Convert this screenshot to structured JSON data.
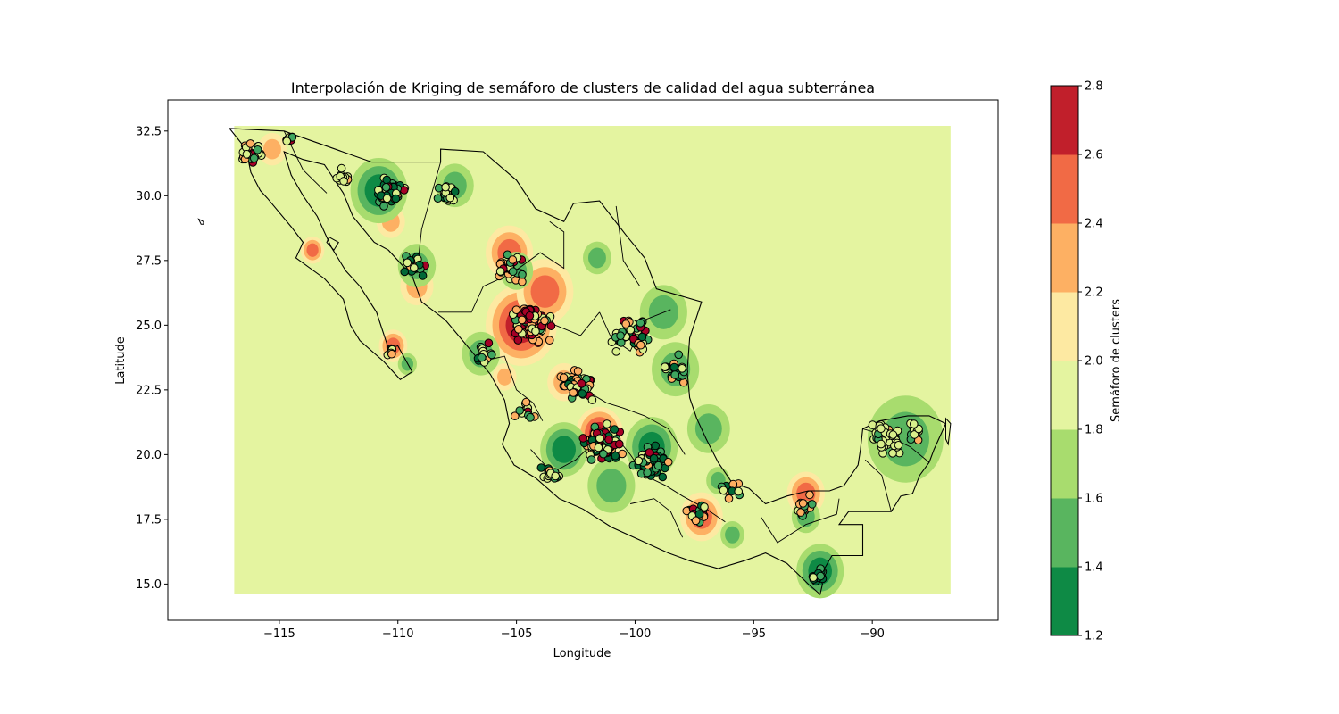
{
  "chart_data": {
    "type": "contour-map",
    "title": "Interpolación de Kriging de semáforo de clusters de calidad del agua subterránea",
    "xlabel": "Longitude",
    "ylabel": "Latitude",
    "xlim": [
      -119.7,
      -84.7
    ],
    "ylim": [
      13.6,
      33.7
    ],
    "x_ticks": [
      -115,
      -110,
      -105,
      -100,
      -95,
      -90
    ],
    "x_tick_labels": [
      "−115",
      "−110",
      "−105",
      "−100",
      "−95",
      "−90"
    ],
    "y_ticks": [
      15.0,
      17.5,
      20.0,
      22.5,
      25.0,
      27.5,
      30.0,
      32.5
    ],
    "y_tick_labels": [
      "15.0",
      "17.5",
      "20.0",
      "22.5",
      "25.0",
      "27.5",
      "30.0",
      "32.5"
    ],
    "interpolation_extent": {
      "lon": [
        -116.9,
        -86.7
      ],
      "lat": [
        14.6,
        32.7
      ]
    },
    "colorbar": {
      "label": "Semáforo de clusters",
      "levels": [
        1.2,
        1.4,
        1.6,
        1.8,
        2.0,
        2.2,
        2.4,
        2.6,
        2.8
      ],
      "tick_labels": [
        "1.2",
        "1.4",
        "1.6",
        "1.8",
        "2.0",
        "2.2",
        "2.4",
        "2.6",
        "2.8"
      ],
      "colors": [
        "#0e8a45",
        "#59b55f",
        "#a8dc6e",
        "#e4f4a0",
        "#fde9a2",
        "#fdb063",
        "#f16a45",
        "#c11f2b"
      ]
    },
    "background_level_color": "#e4f4a0",
    "point_edge_color": "#000000",
    "hotspots": [
      {
        "lon": -104.8,
        "lat": 25.0,
        "value": 2.7,
        "r": 1.5
      },
      {
        "lon": -105.3,
        "lat": 27.8,
        "value": 2.5,
        "r": 1.0
      },
      {
        "lon": -103.8,
        "lat": 26.3,
        "value": 2.4,
        "r": 1.2
      },
      {
        "lon": -101.5,
        "lat": 20.8,
        "value": 2.7,
        "r": 1.0
      },
      {
        "lon": -97.2,
        "lat": 17.6,
        "value": 2.5,
        "r": 0.9
      },
      {
        "lon": -92.8,
        "lat": 18.5,
        "value": 2.5,
        "r": 0.8
      },
      {
        "lon": -110.2,
        "lat": 24.2,
        "value": 2.4,
        "r": 0.6
      },
      {
        "lon": -115.3,
        "lat": 31.8,
        "value": 2.3,
        "r": 0.6
      },
      {
        "lon": -113.6,
        "lat": 27.9,
        "value": 2.4,
        "r": 0.5
      },
      {
        "lon": -109.2,
        "lat": 26.5,
        "value": 2.3,
        "r": 0.7
      },
      {
        "lon": -110.3,
        "lat": 29.0,
        "value": 2.3,
        "r": 0.6
      },
      {
        "lon": -103.0,
        "lat": 22.8,
        "value": 2.3,
        "r": 0.7
      },
      {
        "lon": -105.5,
        "lat": 23.0,
        "value": 2.3,
        "r": 0.5
      },
      {
        "lon": -96.9,
        "lat": 21.0,
        "value": 1.5,
        "r": 0.9
      },
      {
        "lon": -110.8,
        "lat": 30.2,
        "value": 1.4,
        "r": 1.2
      },
      {
        "lon": -109.2,
        "lat": 27.3,
        "value": 1.5,
        "r": 0.8
      },
      {
        "lon": -105.0,
        "lat": 27.1,
        "value": 1.6,
        "r": 0.7
      },
      {
        "lon": -103.0,
        "lat": 20.2,
        "value": 1.4,
        "r": 1.0
      },
      {
        "lon": -99.3,
        "lat": 20.3,
        "value": 1.4,
        "r": 1.1
      },
      {
        "lon": -101.0,
        "lat": 18.8,
        "value": 1.5,
        "r": 1.0
      },
      {
        "lon": -98.3,
        "lat": 23.3,
        "value": 1.5,
        "r": 1.0
      },
      {
        "lon": -98.8,
        "lat": 25.5,
        "value": 1.6,
        "r": 1.0
      },
      {
        "lon": -92.2,
        "lat": 15.5,
        "value": 1.4,
        "r": 1.0
      },
      {
        "lon": -92.8,
        "lat": 17.6,
        "value": 1.5,
        "r": 0.6
      },
      {
        "lon": -88.6,
        "lat": 20.6,
        "value": 1.6,
        "r": 1.6
      },
      {
        "lon": -106.5,
        "lat": 23.9,
        "value": 1.6,
        "r": 0.8
      },
      {
        "lon": -101.6,
        "lat": 27.6,
        "value": 1.6,
        "r": 0.6
      },
      {
        "lon": -107.6,
        "lat": 30.4,
        "value": 1.6,
        "r": 0.8
      },
      {
        "lon": -96.5,
        "lat": 19.0,
        "value": 1.6,
        "r": 0.5
      },
      {
        "lon": -95.9,
        "lat": 16.9,
        "value": 1.6,
        "r": 0.5
      },
      {
        "lon": -109.6,
        "lat": 23.5,
        "value": 1.6,
        "r": 0.4
      }
    ],
    "coastline": [
      [
        -117.1,
        32.6
      ],
      [
        -116.4,
        31.8
      ],
      [
        -116.2,
        30.9
      ],
      [
        -115.8,
        30.2
      ],
      [
        -115.5,
        29.9
      ],
      [
        -114.5,
        28.8
      ],
      [
        -114.0,
        28.2
      ],
      [
        -114.3,
        27.6
      ],
      [
        -113.1,
        26.8
      ],
      [
        -112.3,
        26.0
      ],
      [
        -112.0,
        25.0
      ],
      [
        -111.6,
        24.4
      ],
      [
        -110.6,
        23.6
      ],
      [
        -109.9,
        22.9
      ],
      [
        -109.4,
        23.2
      ],
      [
        -110.0,
        24.2
      ],
      [
        -110.4,
        24.1
      ],
      [
        -110.9,
        25.5
      ],
      [
        -111.6,
        26.5
      ],
      [
        -112.2,
        27.1
      ],
      [
        -112.8,
        28.0
      ],
      [
        -113.4,
        29.2
      ],
      [
        -114.0,
        30.0
      ],
      [
        -114.5,
        30.8
      ],
      [
        -114.8,
        31.7
      ],
      [
        -114.0,
        31.4
      ],
      [
        -113.1,
        31.2
      ],
      [
        -112.3,
        30.1
      ],
      [
        -111.9,
        29.2
      ],
      [
        -111.0,
        28.2
      ],
      [
        -110.4,
        27.9
      ],
      [
        -109.4,
        26.9
      ],
      [
        -109.0,
        25.9
      ],
      [
        -108.0,
        25.2
      ],
      [
        -106.9,
        24.0
      ],
      [
        -106.1,
        23.1
      ],
      [
        -105.5,
        22.1
      ],
      [
        -105.3,
        21.2
      ],
      [
        -105.6,
        20.4
      ],
      [
        -105.1,
        19.6
      ],
      [
        -104.2,
        19.1
      ],
      [
        -103.2,
        18.3
      ],
      [
        -102.2,
        17.9
      ],
      [
        -101.0,
        17.2
      ],
      [
        -99.8,
        16.7
      ],
      [
        -98.6,
        16.2
      ],
      [
        -97.7,
        15.9
      ],
      [
        -96.5,
        15.6
      ],
      [
        -95.4,
        15.9
      ],
      [
        -94.5,
        16.2
      ],
      [
        -93.6,
        15.8
      ],
      [
        -92.7,
        15.0
      ],
      [
        -92.2,
        14.6
      ],
      [
        -92.1,
        15.0
      ],
      [
        -92.2,
        15.3
      ],
      [
        -91.7,
        16.1
      ],
      [
        -90.4,
        16.1
      ],
      [
        -90.4,
        17.3
      ],
      [
        -91.4,
        17.3
      ],
      [
        -91.0,
        17.8
      ],
      [
        -89.2,
        17.8
      ],
      [
        -88.8,
        18.4
      ],
      [
        -88.3,
        18.5
      ],
      [
        -88.0,
        19.2
      ],
      [
        -87.6,
        19.7
      ],
      [
        -87.4,
        20.2
      ],
      [
        -86.9,
        21.2
      ],
      [
        -87.6,
        21.5
      ],
      [
        -88.5,
        21.5
      ],
      [
        -89.7,
        21.3
      ],
      [
        -90.4,
        21.0
      ],
      [
        -90.5,
        20.2
      ],
      [
        -90.6,
        19.6
      ],
      [
        -91.2,
        18.8
      ],
      [
        -91.8,
        18.6
      ],
      [
        -92.7,
        18.6
      ],
      [
        -93.6,
        18.4
      ],
      [
        -94.5,
        18.1
      ],
      [
        -95.2,
        18.7
      ],
      [
        -95.9,
        18.9
      ],
      [
        -96.5,
        19.7
      ],
      [
        -97.0,
        20.6
      ],
      [
        -97.4,
        21.4
      ],
      [
        -97.7,
        22.2
      ],
      [
        -97.8,
        23.2
      ],
      [
        -97.7,
        24.5
      ],
      [
        -97.2,
        25.9
      ],
      [
        -99.1,
        26.4
      ],
      [
        -99.6,
        27.6
      ],
      [
        -100.4,
        28.5
      ],
      [
        -101.5,
        29.8
      ],
      [
        -102.6,
        29.7
      ],
      [
        -103.0,
        29.0
      ],
      [
        -104.2,
        29.5
      ],
      [
        -105.0,
        30.6
      ],
      [
        -106.4,
        31.7
      ],
      [
        -108.2,
        31.8
      ],
      [
        -108.2,
        31.3
      ],
      [
        -111.1,
        31.3
      ],
      [
        -114.8,
        32.5
      ],
      [
        -117.1,
        32.6
      ]
    ],
    "state_borders": [
      [
        [
          -114.8,
          32.5
        ],
        [
          -114.0,
          31.0
        ],
        [
          -113.0,
          30.1
        ]
      ],
      [
        [
          -108.2,
          31.3
        ],
        [
          -108.6,
          30.0
        ],
        [
          -109.0,
          28.7
        ],
        [
          -109.2,
          27.0
        ]
      ],
      [
        [
          -108.3,
          25.5
        ],
        [
          -106.9,
          25.5
        ],
        [
          -106.4,
          26.5
        ],
        [
          -105.2,
          27.0
        ],
        [
          -104.0,
          27.8
        ],
        [
          -103.0,
          27.2
        ],
        [
          -103.0,
          28.6
        ],
        [
          -103.6,
          29.0
        ]
      ],
      [
        [
          -106.5,
          23.6
        ],
        [
          -105.5,
          23.8
        ],
        [
          -105.0,
          22.5
        ],
        [
          -104.3,
          22.0
        ],
        [
          -103.9,
          21.3
        ]
      ],
      [
        [
          -100.8,
          29.6
        ],
        [
          -100.5,
          27.5
        ],
        [
          -99.8,
          26.5
        ]
      ],
      [
        [
          -101.5,
          25.5
        ],
        [
          -101.0,
          24.5
        ],
        [
          -100.2,
          24.0
        ],
        [
          -99.6,
          25.2
        ],
        [
          -98.5,
          25.6
        ]
      ],
      [
        [
          -103.9,
          25.2
        ],
        [
          -102.3,
          24.6
        ],
        [
          -101.5,
          25.5
        ]
      ],
      [
        [
          -102.3,
          22.6
        ],
        [
          -101.2,
          22.0
        ],
        [
          -100.5,
          21.8
        ],
        [
          -99.6,
          21.5
        ],
        [
          -98.6,
          21.0
        ],
        [
          -97.9,
          20.0
        ]
      ],
      [
        [
          -104.4,
          20.2
        ],
        [
          -103.5,
          19.3
        ],
        [
          -102.5,
          19.8
        ],
        [
          -101.7,
          20.5
        ],
        [
          -100.9,
          20.8
        ],
        [
          -100.2,
          20.0
        ],
        [
          -99.6,
          19.2
        ],
        [
          -98.7,
          18.8
        ],
        [
          -98.0,
          18.4
        ],
        [
          -97.0,
          17.9
        ],
        [
          -96.2,
          17.4
        ]
      ],
      [
        [
          -100.2,
          18.1
        ],
        [
          -99.2,
          18.3
        ],
        [
          -98.5,
          17.8
        ],
        [
          -98.0,
          16.8
        ]
      ],
      [
        [
          -94.7,
          17.6
        ],
        [
          -94.0,
          16.6
        ],
        [
          -92.8,
          17.3
        ],
        [
          -91.5,
          17.7
        ],
        [
          -91.4,
          18.3
        ]
      ],
      [
        [
          -90.3,
          19.8
        ],
        [
          -89.6,
          19.2
        ],
        [
          -89.2,
          17.8
        ]
      ],
      [
        [
          -90.4,
          21.0
        ],
        [
          -89.3,
          20.7
        ],
        [
          -88.4,
          20.3
        ],
        [
          -87.6,
          19.7
        ]
      ]
    ],
    "islands": [
      [
        [
          -118.4,
          29.1
        ],
        [
          -118.2,
          29.0
        ],
        [
          -118.2,
          28.9
        ],
        [
          -118.3,
          28.9
        ]
      ],
      [
        [
          -112.9,
          28.4
        ],
        [
          -112.5,
          28.2
        ],
        [
          -112.7,
          27.9
        ],
        [
          -113.0,
          28.2
        ]
      ],
      [
        [
          -86.9,
          21.4
        ],
        [
          -86.7,
          21.2
        ],
        [
          -86.8,
          20.4
        ],
        [
          -86.9,
          20.6
        ]
      ]
    ],
    "point_colors": {
      "1": "#006837",
      "2": "#3ea55f",
      "3": "#d9ef8b",
      "4": "#fdae61",
      "5": "#a50026"
    },
    "clusters": [
      {
        "lon": -104.3,
        "lat": 25.0,
        "spread": 1.1,
        "n": 90,
        "mix": [
          0.06,
          0.1,
          0.18,
          0.28,
          0.38
        ]
      },
      {
        "lon": -101.3,
        "lat": 20.5,
        "spread": 1.0,
        "n": 100,
        "mix": [
          0.25,
          0.2,
          0.2,
          0.15,
          0.2
        ]
      },
      {
        "lon": -99.3,
        "lat": 19.7,
        "spread": 0.9,
        "n": 70,
        "mix": [
          0.32,
          0.28,
          0.2,
          0.12,
          0.08
        ]
      },
      {
        "lon": -102.5,
        "lat": 22.8,
        "spread": 1.0,
        "n": 50,
        "mix": [
          0.15,
          0.2,
          0.25,
          0.25,
          0.15
        ]
      },
      {
        "lon": -100.3,
        "lat": 24.6,
        "spread": 1.2,
        "n": 45,
        "mix": [
          0.1,
          0.25,
          0.35,
          0.2,
          0.1
        ]
      },
      {
        "lon": -110.4,
        "lat": 30.1,
        "spread": 0.9,
        "n": 55,
        "mix": [
          0.25,
          0.2,
          0.3,
          0.15,
          0.1
        ]
      },
      {
        "lon": -108.0,
        "lat": 30.1,
        "spread": 0.6,
        "n": 20,
        "mix": [
          0.1,
          0.2,
          0.6,
          0.05,
          0.05
        ]
      },
      {
        "lon": -109.3,
        "lat": 27.3,
        "spread": 0.7,
        "n": 25,
        "mix": [
          0.2,
          0.2,
          0.25,
          0.25,
          0.1
        ]
      },
      {
        "lon": -105.3,
        "lat": 27.2,
        "spread": 0.9,
        "n": 30,
        "mix": [
          0.1,
          0.15,
          0.3,
          0.25,
          0.2
        ]
      },
      {
        "lon": -116.2,
        "lat": 31.6,
        "spread": 0.6,
        "n": 25,
        "mix": [
          0.0,
          0.1,
          0.45,
          0.35,
          0.1
        ]
      },
      {
        "lon": -114.6,
        "lat": 32.2,
        "spread": 0.3,
        "n": 10,
        "mix": [
          0.0,
          0.2,
          0.5,
          0.2,
          0.1
        ]
      },
      {
        "lon": -112.3,
        "lat": 30.7,
        "spread": 0.5,
        "n": 12,
        "mix": [
          0.0,
          0.1,
          0.6,
          0.3,
          0.0
        ]
      },
      {
        "lon": -110.3,
        "lat": 24.0,
        "spread": 0.3,
        "n": 8,
        "mix": [
          0.0,
          0.1,
          0.3,
          0.4,
          0.2
        ]
      },
      {
        "lon": -106.3,
        "lat": 23.9,
        "spread": 0.6,
        "n": 18,
        "mix": [
          0.15,
          0.35,
          0.3,
          0.15,
          0.05
        ]
      },
      {
        "lon": -97.4,
        "lat": 17.7,
        "spread": 0.5,
        "n": 16,
        "mix": [
          0.1,
          0.2,
          0.25,
          0.25,
          0.2
        ]
      },
      {
        "lon": -96.0,
        "lat": 18.7,
        "spread": 0.6,
        "n": 12,
        "mix": [
          0.2,
          0.3,
          0.3,
          0.2,
          0.0
        ]
      },
      {
        "lon": -92.9,
        "lat": 18.0,
        "spread": 0.6,
        "n": 16,
        "mix": [
          0.05,
          0.3,
          0.2,
          0.35,
          0.1
        ]
      },
      {
        "lon": -92.2,
        "lat": 15.3,
        "spread": 0.5,
        "n": 14,
        "mix": [
          0.4,
          0.35,
          0.15,
          0.1,
          0.0
        ]
      },
      {
        "lon": -89.4,
        "lat": 20.7,
        "spread": 0.9,
        "n": 45,
        "mix": [
          0.05,
          0.15,
          0.75,
          0.05,
          0.0
        ]
      },
      {
        "lon": -88.2,
        "lat": 20.9,
        "spread": 0.6,
        "n": 12,
        "mix": [
          0.0,
          0.3,
          0.6,
          0.1,
          0.0
        ]
      },
      {
        "lon": -98.3,
        "lat": 23.3,
        "spread": 0.8,
        "n": 18,
        "mix": [
          0.25,
          0.35,
          0.3,
          0.1,
          0.0
        ]
      },
      {
        "lon": -104.7,
        "lat": 21.6,
        "spread": 0.7,
        "n": 12,
        "mix": [
          0.0,
          0.2,
          0.4,
          0.3,
          0.1
        ]
      },
      {
        "lon": -103.6,
        "lat": 19.3,
        "spread": 0.6,
        "n": 14,
        "mix": [
          0.3,
          0.2,
          0.3,
          0.15,
          0.05
        ]
      }
    ]
  }
}
